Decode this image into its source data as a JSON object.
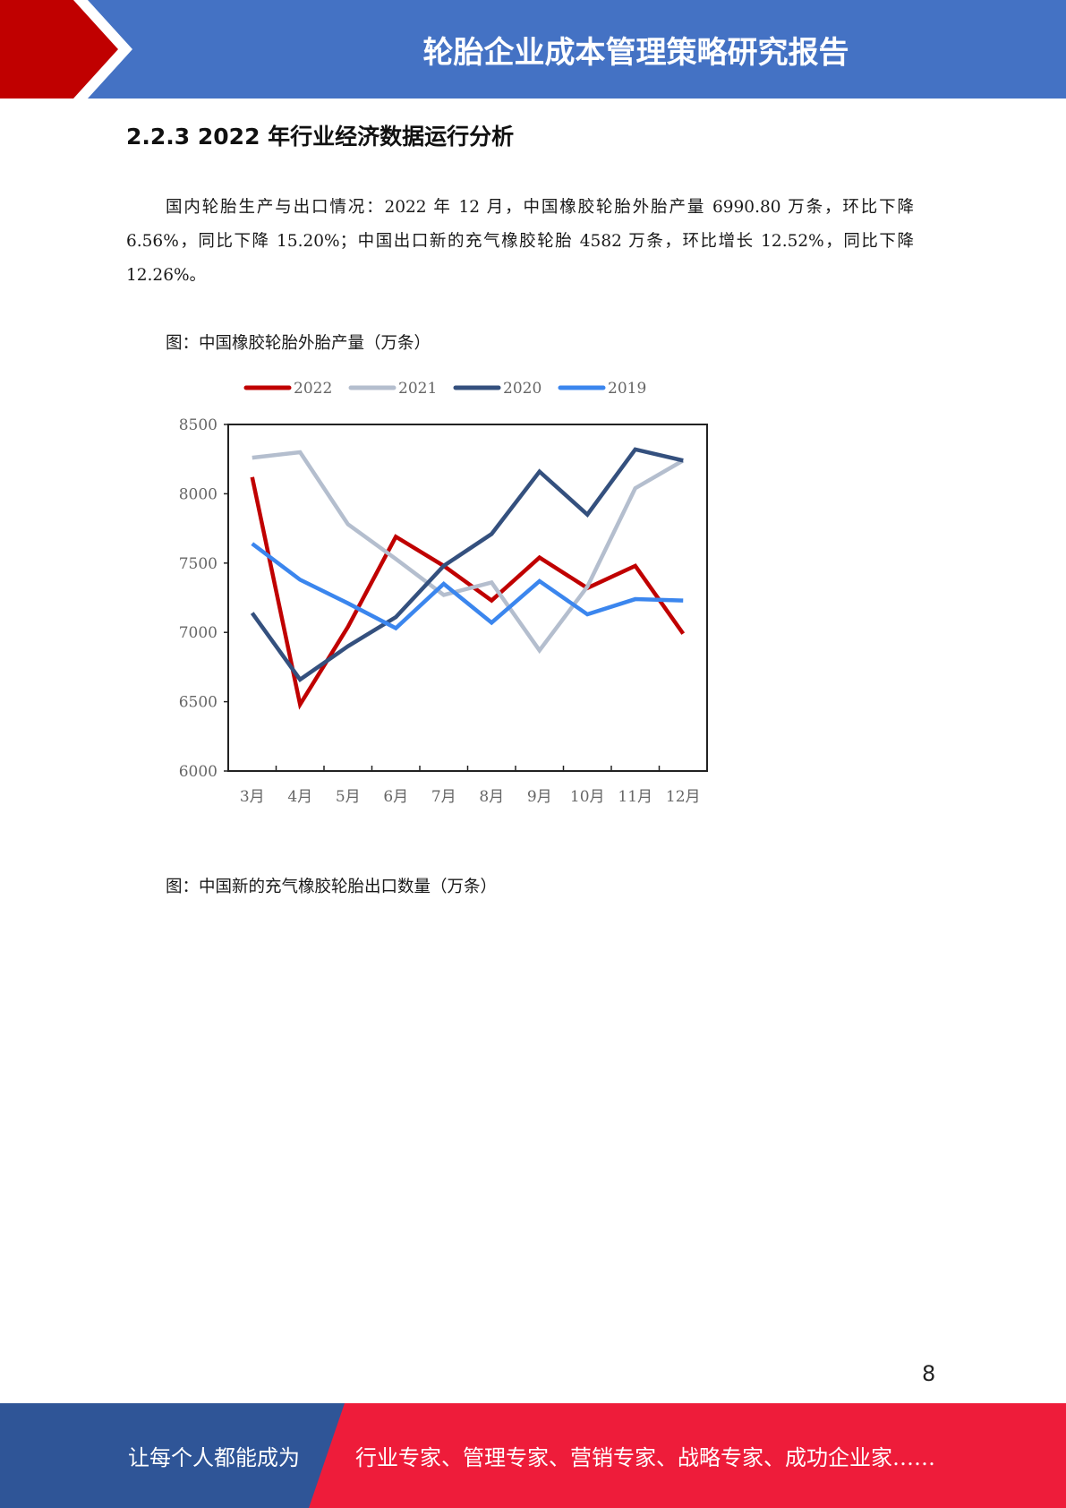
{
  "header": {
    "title": "轮胎企业成本管理策略研究报告",
    "colors": {
      "red": "#C00000",
      "blue": "#4472C4"
    }
  },
  "section": {
    "heading": "2.2.3 2022 年行业经济数据运行分析",
    "paragraph": "国内轮胎生产与出口情况：2022 年 12 月，中国橡胶轮胎外胎产量 6990.80 万条，环比下降 6.56%，同比下降 15.20%；中国出口新的充气橡胶轮胎 4582 万条，环比增长 12.52%，同比下降 12.26%。"
  },
  "figures": {
    "caption1": "图：中国橡胶轮胎外胎产量（万条）",
    "caption2": "图：中国新的充气橡胶轮胎出口数量（万条）"
  },
  "chart_data": {
    "type": "line",
    "categories": [
      "3月",
      "4月",
      "5月",
      "6月",
      "7月",
      "8月",
      "9月",
      "10月",
      "11月",
      "12月"
    ],
    "ylim": [
      6000,
      8500
    ],
    "yticks": [
      6000,
      6500,
      7000,
      7500,
      8000,
      8500
    ],
    "legend_position": "top",
    "grid": false,
    "series": [
      {
        "name": "2022",
        "color": "#C00000",
        "values": [
          8120,
          6480,
          7040,
          7690,
          7480,
          7230,
          7540,
          7320,
          7480,
          6990.8
        ]
      },
      {
        "name": "2021",
        "color": "#B4BECE",
        "values": [
          8260,
          8300,
          7780,
          7530,
          7270,
          7360,
          6870,
          7330,
          8040,
          8240
        ]
      },
      {
        "name": "2020",
        "color": "#34507E",
        "values": [
          7140,
          6660,
          6900,
          7110,
          7480,
          7710,
          8160,
          7850,
          8320,
          8240
        ]
      },
      {
        "name": "2019",
        "color": "#3B86EE",
        "values": [
          7640,
          7380,
          7210,
          7030,
          7350,
          7070,
          7370,
          7130,
          7240,
          7230
        ]
      }
    ]
  },
  "page_number": "8",
  "footer": {
    "left_text": "让每个人都能成为",
    "right_text": "行业专家、管理专家、营销专家、战略专家、成功企业家……",
    "colors": {
      "blue": "#2F5597",
      "red": "#EE1C3A"
    }
  }
}
